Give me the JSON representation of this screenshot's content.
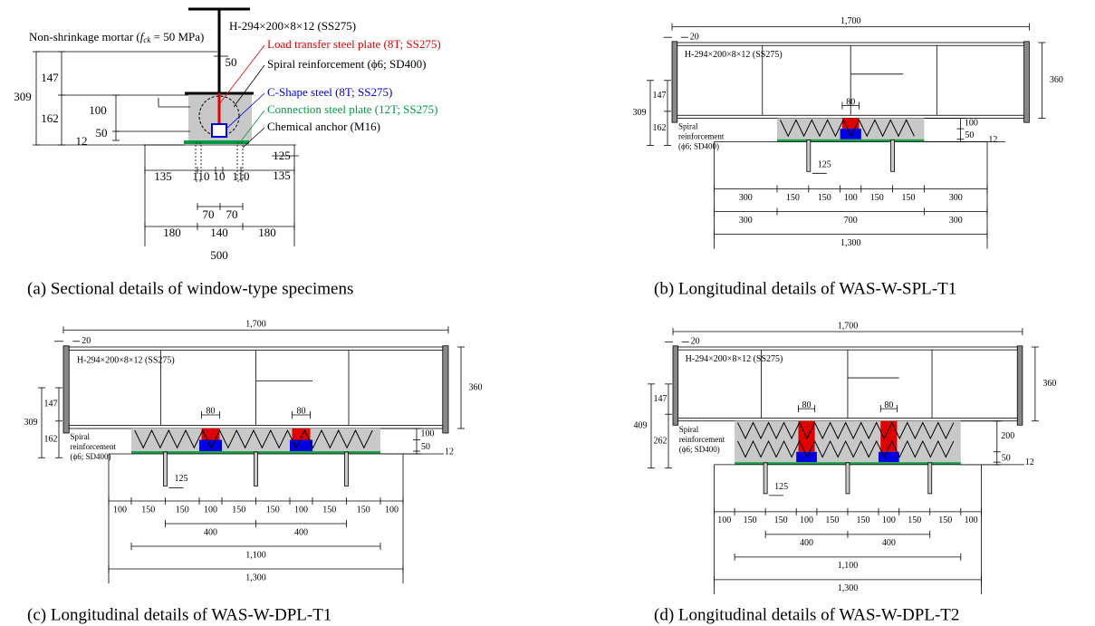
{
  "panel_a": {
    "column_label": "H-294×200×8×12 (SS275)",
    "mortar_label": {
      "before": "Non-shrinkage mortar (",
      "var": "f",
      "sub": "ck",
      "after": " = 50 MPa)"
    },
    "callouts": [
      {
        "text": "Load transfer steel plate (8T; SS275)",
        "color": "#e00000"
      },
      {
        "text": "Spiral reinforcement (ϕ6; SD400)",
        "color": "#000000"
      },
      {
        "text": "C-Shape steel (8T; SS275)",
        "color": "#0000e0"
      },
      {
        "text": "Connection steel plate (12T; SS275)",
        "color": "#009a40"
      },
      {
        "text": "Chemical anchor (M16)",
        "color": "#000000"
      }
    ],
    "dims": [
      "309",
      "147",
      "162",
      "100",
      "50",
      "12",
      "50",
      "135",
      "110",
      "10",
      "110",
      "125",
      "135",
      "70",
      "70",
      "180",
      "140",
      "180",
      "500"
    ],
    "caption": "(a) Sectional details of window-type specimens"
  },
  "panel_b": {
    "total_length": "1,700",
    "end_gap": "20",
    "beam_label": "H-294×200×8×12 (SS275)",
    "beam_height": "360",
    "plate_widths": [
      "80"
    ],
    "height_dims": {
      "upper": "147",
      "total": "309",
      "lower": "162"
    },
    "spiral_label": [
      "Spiral",
      "reinforcement",
      "(ϕ6; SD400)"
    ],
    "mortar_dims": {
      "mortar": "100",
      "c_shape": "50",
      "plate": "12"
    },
    "anchor_depth": "125",
    "dim_rows": [
      [
        "300",
        "150",
        "150",
        "100",
        "150",
        "150",
        "300"
      ],
      [
        "300",
        "700",
        "300"
      ]
    ],
    "base_length": "1,300",
    "caption": "(b) Longitudinal details of WAS-W-SPL-T1"
  },
  "panel_c": {
    "total_length": "1,700",
    "end_gap": "20",
    "beam_label": "H-294×200×8×12 (SS275)",
    "beam_height": "360",
    "plate_widths": [
      "80",
      "80"
    ],
    "height_dims": {
      "upper": "147",
      "total": "309",
      "lower": "162"
    },
    "spiral_label": [
      "Spiral",
      "reinforcement",
      "(ϕ6; SD400)"
    ],
    "mortar_dims": {
      "mortar": "100",
      "c_shape": "50",
      "plate": "12"
    },
    "anchor_depth": "125",
    "dim_rows": [
      [
        "100",
        "150",
        "150",
        "100",
        "150",
        "150",
        "100",
        "150",
        "150",
        "100"
      ],
      [
        "400",
        "400"
      ],
      [
        "1,100"
      ]
    ],
    "base_length": "1,300",
    "caption": "(c) Longitudinal details of WAS-W-DPL-T1"
  },
  "panel_d": {
    "total_length": "1,700",
    "end_gap": "20",
    "beam_label": "H-294×200×8×12 (SS275)",
    "beam_height": "360",
    "plate_widths": [
      "80",
      "80"
    ],
    "height_dims": {
      "upper": "147",
      "total": "409",
      "lower": "262"
    },
    "spiral_label": [
      "Spiral",
      "reinforcement",
      "(ϕ6; SD400)"
    ],
    "mortar_dims": {
      "mortar": "200",
      "c_shape": "50",
      "plate": "12"
    },
    "anchor_depth": "125",
    "dim_rows": [
      [
        "100",
        "150",
        "150",
        "100",
        "150",
        "150",
        "100",
        "150",
        "150",
        "100"
      ],
      [
        "400",
        "400"
      ],
      [
        "1,100"
      ]
    ],
    "base_length": "1,300",
    "caption": "(d) Longitudinal details of WAS-W-DPL-T2"
  }
}
